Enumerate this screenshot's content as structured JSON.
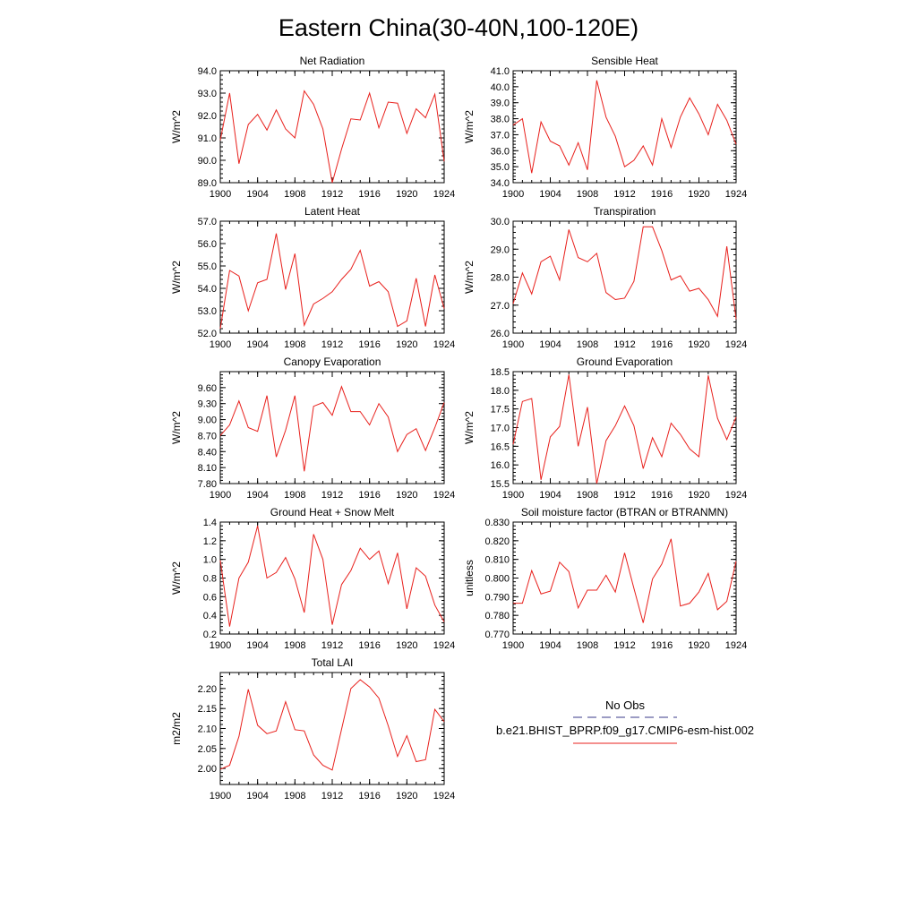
{
  "figure": {
    "title": "Eastern China(30-40N,100-120E)",
    "background": "#ffffff",
    "line_color": "#e8201c",
    "obs_color": "#3a3a8a"
  },
  "legend": {
    "obs_label": "No Obs",
    "model_label": "b.e21.BHIST_BPRP.f09_g17.CMIP6-esm-hist.002"
  },
  "chart_data": [
    {
      "type": "line",
      "title": "Net Radiation",
      "ylabel": "W/m^2",
      "xlabel": "",
      "xlim": [
        1900,
        1924
      ],
      "ylim": [
        89.0,
        94.0
      ],
      "xticks": [
        1900,
        1904,
        1908,
        1912,
        1916,
        1920,
        1924
      ],
      "yticks": [
        89.0,
        90.0,
        91.0,
        92.0,
        93.0,
        94.0
      ],
      "ytick_labels": [
        "89.0",
        "90.0",
        "91.0",
        "92.0",
        "93.0",
        "94.0"
      ],
      "x": [
        1900,
        1901,
        1902,
        1903,
        1904,
        1905,
        1906,
        1907,
        1908,
        1909,
        1910,
        1911,
        1912,
        1913,
        1914,
        1915,
        1916,
        1917,
        1918,
        1919,
        1920,
        1921,
        1922,
        1923,
        1924
      ],
      "values": [
        90.9,
        93.0,
        89.85,
        91.6,
        92.05,
        91.35,
        92.25,
        91.4,
        91.0,
        93.1,
        92.5,
        91.4,
        89.0,
        90.5,
        91.85,
        91.8,
        93.0,
        91.45,
        92.6,
        92.55,
        91.2,
        92.3,
        91.9,
        92.95,
        89.95
      ]
    },
    {
      "type": "line",
      "title": "Sensible Heat",
      "ylabel": "W/m^2",
      "xlabel": "",
      "xlim": [
        1900,
        1924
      ],
      "ylim": [
        34.0,
        41.0
      ],
      "xticks": [
        1900,
        1904,
        1908,
        1912,
        1916,
        1920,
        1924
      ],
      "yticks": [
        34.0,
        35.0,
        36.0,
        37.0,
        38.0,
        39.0,
        40.0,
        41.0
      ],
      "ytick_labels": [
        "34.0",
        "35.0",
        "36.0",
        "37.0",
        "38.0",
        "39.0",
        "40.0",
        "41.0"
      ],
      "x": [
        1900,
        1901,
        1902,
        1903,
        1904,
        1905,
        1906,
        1907,
        1908,
        1909,
        1910,
        1911,
        1912,
        1913,
        1914,
        1915,
        1916,
        1917,
        1918,
        1919,
        1920,
        1921,
        1922,
        1923,
        1924
      ],
      "values": [
        37.6,
        38.0,
        34.6,
        37.8,
        36.6,
        36.3,
        35.1,
        36.5,
        34.8,
        40.4,
        38.1,
        36.9,
        35.0,
        35.4,
        36.3,
        35.1,
        38.0,
        36.2,
        38.1,
        39.3,
        38.3,
        37.0,
        38.9,
        37.9,
        36.4
      ]
    },
    {
      "type": "line",
      "title": "Latent Heat",
      "ylabel": "W/m^2",
      "xlabel": "",
      "xlim": [
        1900,
        1924
      ],
      "ylim": [
        52.0,
        57.0
      ],
      "xticks": [
        1900,
        1904,
        1908,
        1912,
        1916,
        1920,
        1924
      ],
      "yticks": [
        52.0,
        53.0,
        54.0,
        55.0,
        56.0,
        57.0
      ],
      "ytick_labels": [
        "52.0",
        "53.0",
        "54.0",
        "55.0",
        "56.0",
        "57.0"
      ],
      "x": [
        1900,
        1901,
        1902,
        1903,
        1904,
        1905,
        1906,
        1907,
        1908,
        1909,
        1910,
        1911,
        1912,
        1913,
        1914,
        1915,
        1916,
        1917,
        1918,
        1919,
        1920,
        1921,
        1922,
        1923,
        1924
      ],
      "values": [
        52.2,
        54.8,
        54.55,
        53.0,
        54.25,
        54.4,
        56.45,
        53.95,
        55.55,
        52.35,
        53.3,
        53.55,
        53.85,
        54.4,
        54.85,
        55.7,
        54.1,
        54.3,
        53.85,
        52.3,
        52.55,
        54.45,
        52.3,
        54.6,
        53.1
      ]
    },
    {
      "type": "line",
      "title": "Transpiration",
      "ylabel": "W/m^2",
      "xlabel": "",
      "xlim": [
        1900,
        1924
      ],
      "ylim": [
        26.0,
        30.0
      ],
      "xticks": [
        1900,
        1904,
        1908,
        1912,
        1916,
        1920,
        1924
      ],
      "yticks": [
        26.0,
        27.0,
        28.0,
        29.0,
        30.0
      ],
      "ytick_labels": [
        "26.0",
        "27.0",
        "28.0",
        "29.0",
        "30.0"
      ],
      "x": [
        1900,
        1901,
        1902,
        1903,
        1904,
        1905,
        1906,
        1907,
        1908,
        1909,
        1910,
        1911,
        1912,
        1913,
        1914,
        1915,
        1916,
        1917,
        1918,
        1919,
        1920,
        1921,
        1922,
        1923,
        1924
      ],
      "values": [
        27.05,
        28.15,
        27.4,
        28.55,
        28.75,
        27.9,
        29.7,
        28.7,
        28.55,
        28.85,
        27.45,
        27.2,
        27.25,
        27.85,
        29.8,
        29.8,
        28.95,
        27.9,
        28.05,
        27.5,
        27.6,
        27.2,
        26.6,
        29.1,
        26.5
      ]
    },
    {
      "type": "line",
      "title": "Canopy Evaporation",
      "ylabel": "W/m^2",
      "xlabel": "",
      "xlim": [
        1900,
        1924
      ],
      "ylim": [
        7.8,
        9.9
      ],
      "xticks": [
        1900,
        1904,
        1908,
        1912,
        1916,
        1920,
        1924
      ],
      "yticks": [
        7.8,
        8.1,
        8.4,
        8.7,
        9.0,
        9.3,
        9.6
      ],
      "ytick_labels": [
        "7.80",
        "8.10",
        "8.40",
        "8.70",
        "9.00",
        "9.30",
        "9.60"
      ],
      "x": [
        1900,
        1901,
        1902,
        1903,
        1904,
        1905,
        1906,
        1907,
        1908,
        1909,
        1910,
        1911,
        1912,
        1913,
        1914,
        1915,
        1916,
        1917,
        1918,
        1919,
        1920,
        1921,
        1922,
        1923,
        1924
      ],
      "values": [
        8.7,
        8.9,
        9.35,
        8.85,
        8.78,
        9.45,
        8.3,
        8.8,
        9.45,
        8.03,
        9.25,
        9.32,
        9.08,
        9.62,
        9.15,
        9.15,
        8.9,
        9.3,
        9.05,
        8.4,
        8.72,
        8.83,
        8.42,
        8.85,
        9.32
      ]
    },
    {
      "type": "line",
      "title": "Ground Evaporation",
      "ylabel": "W/m^2",
      "xlabel": "",
      "xlim": [
        1900,
        1924
      ],
      "ylim": [
        15.5,
        18.5
      ],
      "xticks": [
        1900,
        1904,
        1908,
        1912,
        1916,
        1920,
        1924
      ],
      "yticks": [
        15.5,
        16.0,
        16.5,
        17.0,
        17.5,
        18.0,
        18.5
      ],
      "ytick_labels": [
        "15.5",
        "16.0",
        "16.5",
        "17.0",
        "17.5",
        "18.0",
        "18.5"
      ],
      "x": [
        1900,
        1901,
        1902,
        1903,
        1904,
        1905,
        1906,
        1907,
        1908,
        1909,
        1910,
        1911,
        1912,
        1913,
        1914,
        1915,
        1916,
        1917,
        1918,
        1919,
        1920,
        1921,
        1922,
        1923,
        1924
      ],
      "values": [
        16.55,
        17.7,
        17.78,
        15.6,
        16.75,
        17.03,
        18.42,
        16.5,
        17.55,
        15.5,
        16.65,
        17.05,
        17.58,
        17.05,
        15.9,
        16.73,
        16.22,
        17.12,
        16.82,
        16.43,
        16.22,
        18.4,
        17.25,
        16.68,
        17.28
      ]
    },
    {
      "type": "line",
      "title": "Ground Heat + Snow Melt",
      "ylabel": "W/m^2",
      "xlabel": "",
      "xlim": [
        1900,
        1924
      ],
      "ylim": [
        0.2,
        1.4
      ],
      "xticks": [
        1900,
        1904,
        1908,
        1912,
        1916,
        1920,
        1924
      ],
      "yticks": [
        0.2,
        0.4,
        0.6,
        0.8,
        1.0,
        1.2,
        1.4
      ],
      "ytick_labels": [
        "0.2",
        "0.4",
        "0.6",
        "0.8",
        "1.0",
        "1.2",
        "1.4"
      ],
      "x": [
        1900,
        1901,
        1902,
        1903,
        1904,
        1905,
        1906,
        1907,
        1908,
        1909,
        1910,
        1911,
        1912,
        1913,
        1914,
        1915,
        1916,
        1917,
        1918,
        1919,
        1920,
        1921,
        1922,
        1923,
        1924
      ],
      "values": [
        0.99,
        0.28,
        0.8,
        0.97,
        1.36,
        0.8,
        0.86,
        1.02,
        0.79,
        0.43,
        1.27,
        1.0,
        0.3,
        0.73,
        0.88,
        1.12,
        1.0,
        1.09,
        0.74,
        1.07,
        0.47,
        0.91,
        0.82,
        0.51,
        0.33
      ]
    },
    {
      "type": "line",
      "title": "Soil moisture factor (BTRAN or BTRANMN)",
      "ylabel": "unitless",
      "xlabel": "",
      "xlim": [
        1900,
        1924
      ],
      "ylim": [
        0.77,
        0.83
      ],
      "xticks": [
        1900,
        1904,
        1908,
        1912,
        1916,
        1920,
        1924
      ],
      "yticks": [
        0.77,
        0.78,
        0.79,
        0.8,
        0.81,
        0.82,
        0.83
      ],
      "ytick_labels": [
        "0.770",
        "0.780",
        "0.790",
        "0.800",
        "0.810",
        "0.820",
        "0.830"
      ],
      "x": [
        1900,
        1901,
        1902,
        1903,
        1904,
        1905,
        1906,
        1907,
        1908,
        1909,
        1910,
        1911,
        1912,
        1913,
        1914,
        1915,
        1916,
        1917,
        1918,
        1919,
        1920,
        1921,
        1922,
        1923,
        1924
      ],
      "values": [
        0.7865,
        0.7865,
        0.804,
        0.7915,
        0.793,
        0.8085,
        0.8035,
        0.784,
        0.7935,
        0.7935,
        0.8015,
        0.7925,
        0.8135,
        0.7945,
        0.776,
        0.7995,
        0.8075,
        0.821,
        0.785,
        0.7865,
        0.7925,
        0.8025,
        0.783,
        0.7875,
        0.809
      ]
    },
    {
      "type": "line",
      "title": "Total LAI",
      "ylabel": "m2/m2",
      "xlabel": "",
      "xlim": [
        1900,
        1924
      ],
      "ylim": [
        1.96,
        2.24
      ],
      "xticks": [
        1900,
        1904,
        1908,
        1912,
        1916,
        1920,
        1924
      ],
      "yticks": [
        2.0,
        2.05,
        2.1,
        2.15,
        2.2
      ],
      "ytick_labels": [
        "2.00",
        "2.05",
        "2.10",
        "2.15",
        "2.20"
      ],
      "x": [
        1900,
        1901,
        1902,
        1903,
        1904,
        1905,
        1906,
        1907,
        1908,
        1909,
        1910,
        1911,
        1912,
        1913,
        1914,
        1915,
        1916,
        1917,
        1918,
        1919,
        1920,
        1921,
        1922,
        1923,
        1924
      ],
      "values": [
        1.998,
        2.008,
        2.08,
        2.198,
        2.108,
        2.087,
        2.094,
        2.167,
        2.097,
        2.094,
        2.034,
        2.008,
        1.996,
        2.098,
        2.2,
        2.222,
        2.204,
        2.176,
        2.107,
        2.03,
        2.082,
        2.017,
        2.022,
        2.148,
        2.117
      ]
    }
  ]
}
